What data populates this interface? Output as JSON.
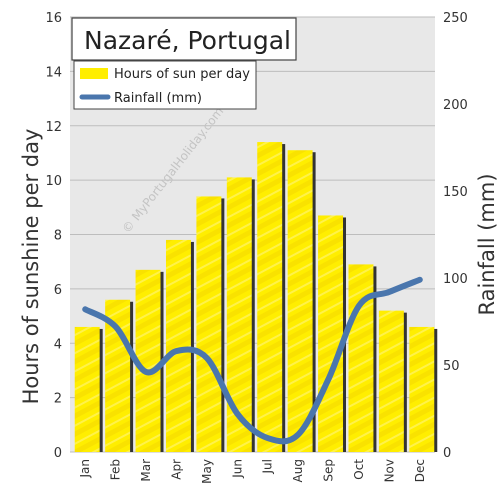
{
  "chart_data": {
    "type": "bar",
    "title": "Nazaré, Portugal",
    "watermark": "© MyPortugalHoliday.com",
    "categories": [
      "Jan",
      "Feb",
      "Mar",
      "Apr",
      "May",
      "Jun",
      "Jul",
      "Aug",
      "Sep",
      "Oct",
      "Nov",
      "Dec"
    ],
    "series": [
      {
        "name": "Hours of sun per day",
        "type": "bar",
        "axis": "left",
        "color": "#ffee00",
        "values": [
          4.6,
          5.6,
          6.7,
          7.8,
          9.4,
          10.1,
          11.4,
          11.1,
          8.7,
          6.9,
          5.2,
          4.6
        ]
      },
      {
        "name": "Rainfall (mm)",
        "type": "line",
        "axis": "right",
        "color": "#4a76ad",
        "values": [
          82,
          72,
          46,
          58,
          54,
          22,
          8,
          10,
          42,
          84,
          92,
          99
        ]
      }
    ],
    "ylabel": "Hours of sunshine per day",
    "ylim": [
      0,
      16
    ],
    "yticks": [
      "0",
      "2",
      "4",
      "6",
      "8",
      "10",
      "12",
      "14",
      "16"
    ],
    "y2label": "Rainfall (mm)",
    "y2lim": [
      0,
      250
    ],
    "y2ticks": [
      "0",
      "50",
      "100",
      "150",
      "200",
      "250"
    ],
    "grid": true,
    "legend_position": "top-left",
    "colors": {
      "plot_background": "#e8e8e8",
      "gridline": "#bdbdbd",
      "bar_shadow": "#333333"
    }
  }
}
